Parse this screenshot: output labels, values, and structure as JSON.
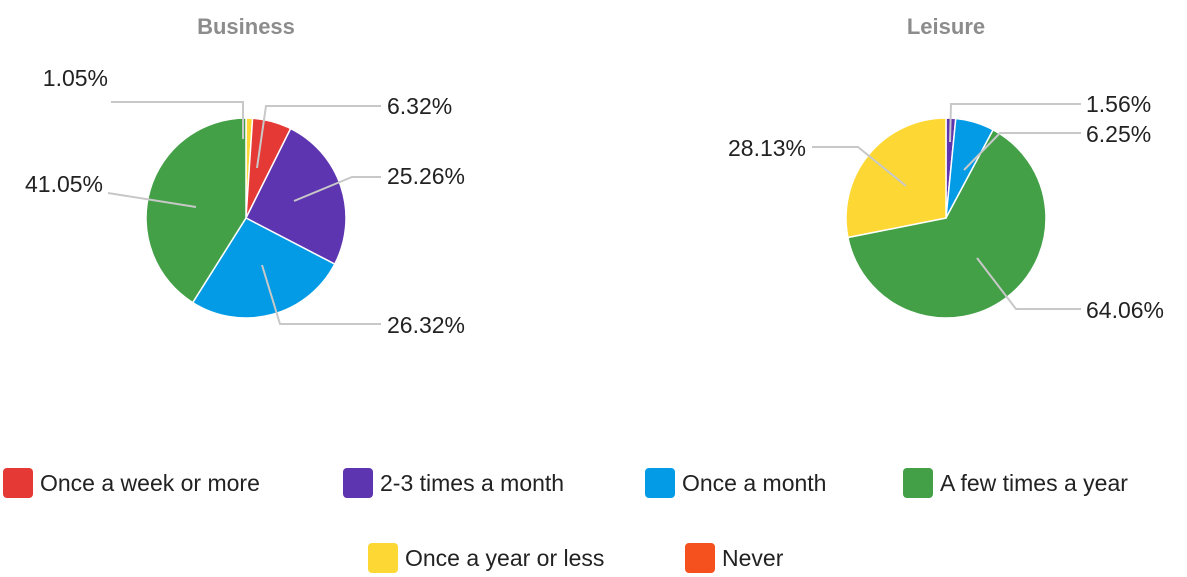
{
  "chart_data": {
    "type": "pie",
    "legend_position": "bottom",
    "categories": [
      "Once a week or more",
      "2-3 times a month",
      "Once a month",
      "A few times a year",
      "Once a year or less",
      "Never"
    ],
    "colors": {
      "Once a week or more": "#e53935",
      "2-3 times a month": "#5e35b1",
      "Once a month": "#039be5",
      "A few times a year": "#43a047",
      "Once a year or less": "#fdd835",
      "Never": "#f4511e"
    },
    "pies": [
      {
        "title": "Business",
        "slices": [
          {
            "category": "Once a year or less",
            "value": 1.05,
            "label": "1.05%"
          },
          {
            "category": "Once a week or more",
            "value": 6.32,
            "label": "6.32%"
          },
          {
            "category": "2-3 times a month",
            "value": 25.26,
            "label": "25.26%"
          },
          {
            "category": "Once a month",
            "value": 26.32,
            "label": "26.32%"
          },
          {
            "category": "A few times a year",
            "value": 41.05,
            "label": "41.05%"
          }
        ]
      },
      {
        "title": "Leisure",
        "slices": [
          {
            "category": "2-3 times a month",
            "value": 1.56,
            "label": "1.56%"
          },
          {
            "category": "Once a month",
            "value": 6.25,
            "label": "6.25%"
          },
          {
            "category": "A few times a year",
            "value": 64.06,
            "label": "64.06%"
          },
          {
            "category": "Once a year or less",
            "value": 28.13,
            "label": "28.13%"
          }
        ]
      }
    ]
  }
}
